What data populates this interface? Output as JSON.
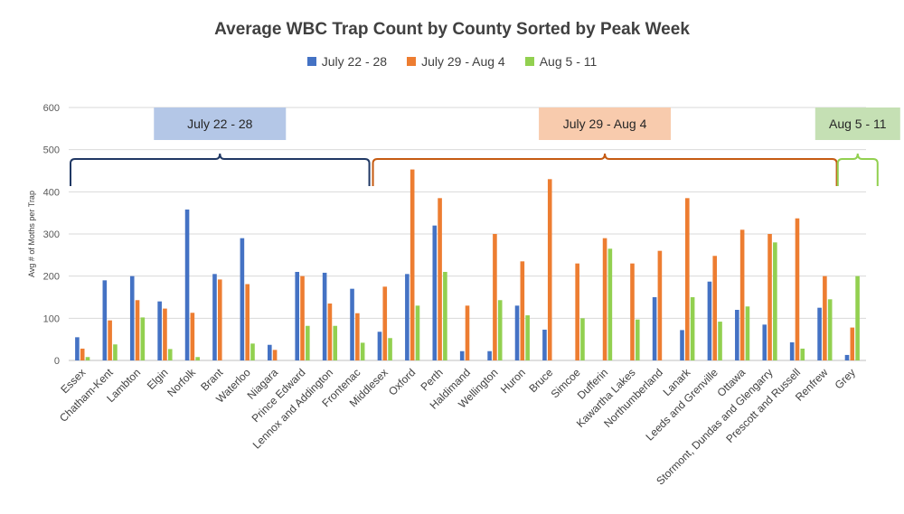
{
  "chart_data": {
    "type": "bar",
    "title": "Average WBC Trap Count by County Sorted by Peak Week",
    "ylabel": "Avg # of Moths per Trap",
    "xlabel": "",
    "ylim": [
      0,
      600
    ],
    "yticks": [
      0,
      100,
      200,
      300,
      400,
      500,
      600
    ],
    "grid": true,
    "legend_position": "top-center",
    "categories": [
      "Essex",
      "Chatham-Kent",
      "Lambton",
      "Elgin",
      "Norfolk",
      "Brant",
      "Waterloo",
      "Niagara",
      "Prince Edward",
      "Lennox and Addington",
      "Frontenac",
      "Middlesex",
      "Oxford",
      "Perth",
      "Haldimand",
      "Wellington",
      "Huron",
      "Bruce",
      "Simcoe",
      "Dufferin",
      "Kawartha Lakes",
      "Northumberland",
      "Lanark",
      "Leeds and Grenville",
      "Ottawa",
      "Stormont, Dundas and Glengarry",
      "Prescott and Russell",
      "Renfrew",
      "Grey"
    ],
    "series": [
      {
        "name": "July 22 - 28",
        "color": "#4472C4",
        "values": [
          55,
          190,
          200,
          140,
          358,
          205,
          290,
          37,
          210,
          208,
          170,
          68,
          205,
          320,
          22,
          22,
          130,
          73,
          0,
          0,
          0,
          150,
          72,
          187,
          120,
          85,
          43,
          125,
          13
        ]
      },
      {
        "name": "July 29 - Aug 4",
        "color": "#ED7D31",
        "values": [
          28,
          95,
          143,
          123,
          113,
          192,
          181,
          25,
          200,
          135,
          112,
          175,
          453,
          385,
          130,
          300,
          235,
          430,
          230,
          290,
          230,
          260,
          385,
          248,
          310,
          300,
          337,
          200,
          78
        ]
      },
      {
        "name": "Aug 5 - 11",
        "color": "#92D050",
        "values": [
          8,
          38,
          102,
          27,
          8,
          0,
          40,
          0,
          82,
          82,
          42,
          53,
          130,
          210,
          0,
          143,
          107,
          0,
          100,
          265,
          97,
          0,
          150,
          92,
          128,
          280,
          28,
          145,
          200
        ]
      }
    ],
    "annotations": [
      {
        "label": "July 22 - 28",
        "from_category": "Essex",
        "to_category": "Frontenac",
        "fill": "#B4C7E7",
        "stroke": "#203864"
      },
      {
        "label": "July 29 - Aug 4",
        "from_category": "Middlesex",
        "to_category": "Renfrew",
        "fill": "#F8CBAD",
        "stroke": "#C55A11"
      },
      {
        "label": "Aug 5 - 11",
        "from_category": "Grey",
        "to_category": "Grey",
        "fill": "#C5E0B4",
        "stroke": "#92D050"
      }
    ]
  }
}
